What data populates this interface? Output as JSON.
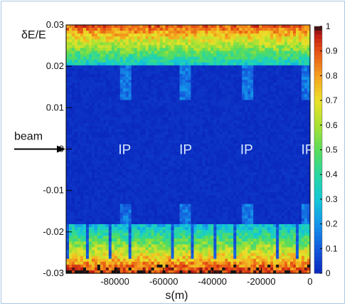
{
  "chart_data": {
    "type": "heatmap",
    "title": "",
    "xlabel": "s(m)",
    "ylabel": "δE/E",
    "xlim": [
      -100000,
      0
    ],
    "ylim": [
      -0.03,
      0.03
    ],
    "x_ticks": [
      {
        "value": -80000,
        "label": "-80000"
      },
      {
        "value": -60000,
        "label": "-60000"
      },
      {
        "value": -40000,
        "label": "-40000"
      },
      {
        "value": -20000,
        "label": "-20000"
      },
      {
        "value": 0,
        "label": "0"
      }
    ],
    "y_ticks": [
      {
        "value": 0.03,
        "label": "0.03"
      },
      {
        "value": 0.02,
        "label": "0.02"
      },
      {
        "value": 0.01,
        "label": "0.01"
      },
      {
        "value": 0,
        "label": "0"
      },
      {
        "value": -0.01,
        "label": "-0.01"
      },
      {
        "value": -0.02,
        "label": "-0.02"
      },
      {
        "value": -0.03,
        "label": "-0.03"
      }
    ],
    "colorbar": {
      "min": 0,
      "max": 1,
      "ticks": [
        {
          "value": 1,
          "label": "1"
        },
        {
          "value": 0.9,
          "label": "0.9"
        },
        {
          "value": 0.8,
          "label": "0.8"
        },
        {
          "value": 0.7,
          "label": "0.7"
        },
        {
          "value": 0.6,
          "label": "0.6"
        },
        {
          "value": 0.5,
          "label": "0.5"
        },
        {
          "value": 0.4,
          "label": "0.4"
        },
        {
          "value": 0.3,
          "label": "0.3"
        },
        {
          "value": 0.2,
          "label": "0.2"
        },
        {
          "value": 0.1,
          "label": "0.1"
        },
        {
          "value": 0,
          "label": "0"
        }
      ]
    },
    "aperture_deltaE": [
      -0.018,
      0.02
    ],
    "ip_positions_m": [
      -76000,
      -51000,
      -26000,
      -1000
    ],
    "ip_label": "IP",
    "annotation": {
      "text": "beam",
      "points_to_deltaE": 0
    }
  }
}
